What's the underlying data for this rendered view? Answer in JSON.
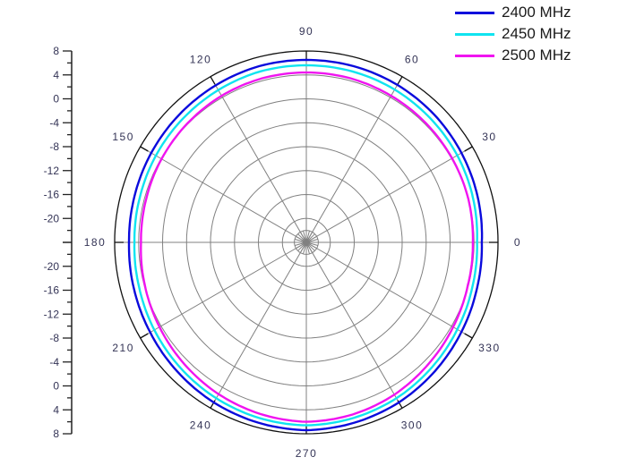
{
  "chart_data": {
    "type": "polar-line",
    "title": "",
    "radial_axis": {
      "min": -24,
      "max": 8,
      "ticks": [
        8,
        4,
        0,
        -4,
        -8,
        -12,
        -16,
        -20
      ],
      "tick_labels": [
        "8",
        "4",
        "0",
        "-4",
        "-8",
        "-12",
        "-16",
        "-20"
      ],
      "minor_step": 2
    },
    "angular_axis": {
      "ticks": [
        0,
        30,
        60,
        90,
        120,
        150,
        180,
        210,
        240,
        270,
        300,
        330
      ],
      "tick_labels": [
        "0",
        "30",
        "60",
        "90",
        "120",
        "150",
        "180",
        "210",
        "240",
        "270",
        "300",
        "330"
      ],
      "grid_step": 30
    },
    "angles": [
      0,
      15,
      30,
      45,
      60,
      75,
      90,
      105,
      120,
      135,
      150,
      165,
      180,
      195,
      210,
      225,
      240,
      255,
      270,
      285,
      300,
      315,
      330,
      345
    ],
    "series": [
      {
        "name": "2400 MHz",
        "color": "#0a0adc",
        "values": [
          5.3,
          5.6,
          5.9,
          6.2,
          6.4,
          6.5,
          6.5,
          6.5,
          6.3,
          6.1,
          5.9,
          5.7,
          5.6,
          5.8,
          6.1,
          6.5,
          6.9,
          7.2,
          7.4,
          7.2,
          6.9,
          6.4,
          5.9,
          5.5
        ]
      },
      {
        "name": "2450 MHz",
        "color": "#10e4f0",
        "values": [
          4.5,
          4.8,
          5.1,
          5.3,
          5.5,
          5.6,
          5.6,
          5.6,
          5.4,
          5.2,
          5.0,
          4.8,
          4.7,
          4.9,
          5.3,
          5.7,
          6.1,
          6.4,
          6.6,
          6.4,
          6.1,
          5.6,
          5.1,
          4.7
        ]
      },
      {
        "name": "2500 MHz",
        "color": "#f014f0",
        "values": [
          3.8,
          4.0,
          4.1,
          4.2,
          4.3,
          4.4,
          4.4,
          4.4,
          4.3,
          4.1,
          3.9,
          3.7,
          3.6,
          3.9,
          4.3,
          4.8,
          5.3,
          5.7,
          6.0,
          5.8,
          5.4,
          4.8,
          4.3,
          3.9
        ]
      }
    ],
    "legend_position": "top-right",
    "grid": true
  },
  "legend": [
    {
      "label": "2400 MHz",
      "color": "#0a0adc"
    },
    {
      "label": "2450 MHz",
      "color": "#10e4f0"
    },
    {
      "label": "2500 MHz",
      "color": "#f014f0"
    }
  ]
}
